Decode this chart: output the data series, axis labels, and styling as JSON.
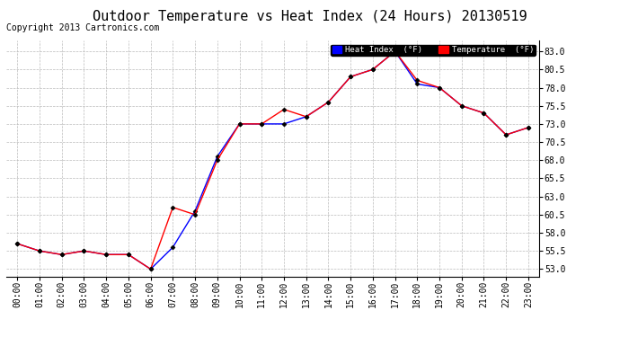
{
  "title": "Outdoor Temperature vs Heat Index (24 Hours) 20130519",
  "copyright": "Copyright 2013 Cartronics.com",
  "x_labels": [
    "00:00",
    "01:00",
    "02:00",
    "03:00",
    "04:00",
    "05:00",
    "06:00",
    "07:00",
    "08:00",
    "09:00",
    "10:00",
    "11:00",
    "12:00",
    "13:00",
    "14:00",
    "15:00",
    "16:00",
    "17:00",
    "18:00",
    "19:00",
    "20:00",
    "21:00",
    "22:00",
    "23:00"
  ],
  "temperature": [
    56.5,
    55.5,
    55.0,
    55.5,
    55.0,
    55.0,
    53.0,
    61.5,
    60.5,
    68.0,
    73.0,
    73.0,
    75.0,
    74.0,
    76.0,
    79.5,
    80.5,
    83.0,
    79.0,
    78.0,
    75.5,
    74.5,
    71.5,
    72.5
  ],
  "heat_index": [
    56.5,
    55.5,
    55.0,
    55.5,
    55.0,
    55.0,
    53.0,
    56.0,
    61.0,
    68.5,
    73.0,
    73.0,
    73.0,
    74.0,
    76.0,
    79.5,
    80.5,
    83.0,
    78.5,
    78.0,
    75.5,
    74.5,
    71.5,
    72.5
  ],
  "temp_color": "#ff0000",
  "heat_color": "#0000ff",
  "bg_color": "#ffffff",
  "plot_bg_color": "#ffffff",
  "grid_color": "#bbbbbb",
  "ylim": [
    52.0,
    84.5
  ],
  "yticks": [
    53.0,
    55.5,
    58.0,
    60.5,
    63.0,
    65.5,
    68.0,
    70.5,
    73.0,
    75.5,
    78.0,
    80.5,
    83.0
  ],
  "legend_heat_label": "Heat Index  (°F)",
  "legend_temp_label": "Temperature  (°F)",
  "title_fontsize": 11,
  "axis_fontsize": 7,
  "copyright_fontsize": 7
}
